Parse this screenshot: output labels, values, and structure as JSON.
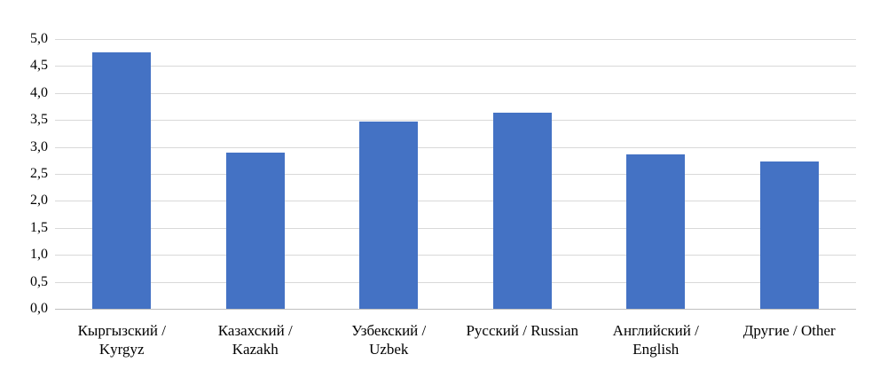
{
  "chart_data": {
    "type": "bar",
    "title": "",
    "xlabel": "",
    "ylabel": "",
    "ylim": [
      0,
      5
    ],
    "grid": "horizontal",
    "legend": "none",
    "bar_color": "#4472C4",
    "categories": [
      "Кыргызский / Kyrgyz",
      "Казахский / Kazakh",
      "Узбекский / Uzbek",
      "Русский / Russian",
      "Английский / English",
      "Другие / Other"
    ],
    "values": [
      4.75,
      2.9,
      3.47,
      3.64,
      2.87,
      2.73
    ],
    "yticks": [
      {
        "value": 0.0,
        "label": "0,0"
      },
      {
        "value": 0.5,
        "label": "0,5"
      },
      {
        "value": 1.0,
        "label": "1,0"
      },
      {
        "value": 1.5,
        "label": "1,5"
      },
      {
        "value": 2.0,
        "label": "2,0"
      },
      {
        "value": 2.5,
        "label": "2,5"
      },
      {
        "value": 3.0,
        "label": "3,0"
      },
      {
        "value": 3.5,
        "label": "3,5"
      },
      {
        "value": 4.0,
        "label": "4,0"
      },
      {
        "value": 4.5,
        "label": "4,5"
      },
      {
        "value": 5.0,
        "label": "5,0"
      }
    ]
  }
}
